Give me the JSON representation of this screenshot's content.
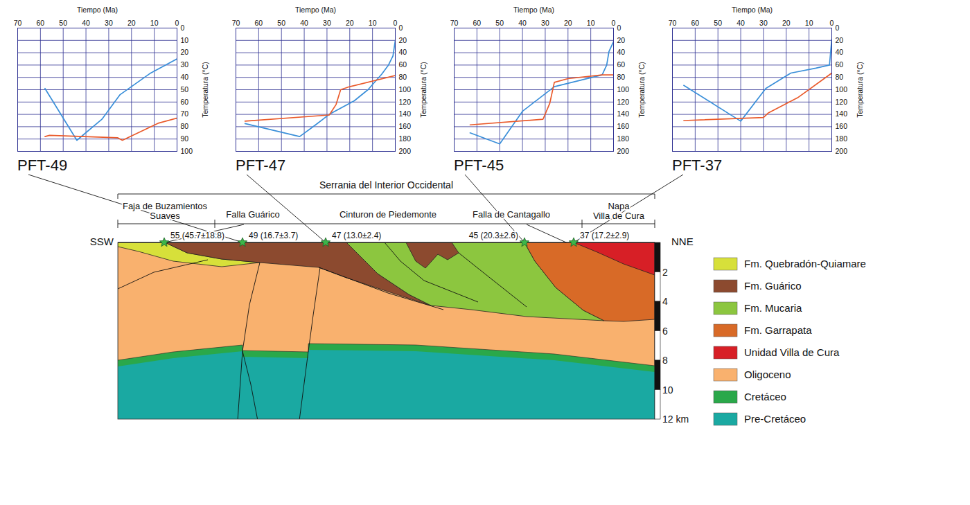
{
  "chart_data": [
    {
      "type": "line",
      "title": "PFT-49",
      "x_label": "Tiempo (Ma)",
      "y_label": "Temperatura (°C)",
      "xlim": [
        70,
        0
      ],
      "xticks": [
        70,
        60,
        50,
        40,
        30,
        20,
        10,
        0
      ],
      "ylim": [
        100,
        0
      ],
      "yticks": [
        0,
        10,
        20,
        30,
        40,
        50,
        60,
        70,
        80,
        90,
        100
      ],
      "grid": true,
      "series": [
        {
          "color": "#3a8fd9",
          "x": [
            58,
            44,
            33,
            25,
            12,
            0
          ],
          "values": [
            49,
            91,
            74,
            54,
            37,
            25
          ]
        },
        {
          "color": "#ea5a2b",
          "x": [
            58,
            56,
            26,
            24,
            8,
            0
          ],
          "values": [
            88,
            87,
            89,
            91,
            77,
            73
          ]
        }
      ]
    },
    {
      "type": "line",
      "title": "PFT-47",
      "x_label": "Tiempo (Ma)",
      "y_label": "Temperatura (°C)",
      "xlim": [
        70,
        0
      ],
      "xticks": [
        70,
        60,
        50,
        40,
        30,
        20,
        10,
        0
      ],
      "ylim": [
        200,
        0
      ],
      "yticks": [
        0,
        20,
        40,
        60,
        80,
        100,
        120,
        140,
        160,
        180,
        200
      ],
      "grid": true,
      "series": [
        {
          "color": "#3a8fd9",
          "x": [
            66,
            42,
            35,
            29,
            18,
            12,
            6,
            3,
            1,
            0
          ],
          "values": [
            155,
            176,
            157,
            140,
            118,
            100,
            75,
            60,
            45,
            20
          ]
        },
        {
          "color": "#ea5a2b",
          "x": [
            66,
            29,
            26,
            24,
            20,
            0
          ],
          "values": [
            151,
            141,
            124,
            100,
            95,
            77
          ]
        }
      ]
    },
    {
      "type": "line",
      "title": "PFT-45",
      "x_label": "Tiempo (Ma)",
      "y_label": "Temperatura (°C)",
      "xlim": [
        70,
        0
      ],
      "xticks": [
        70,
        60,
        50,
        40,
        30,
        20,
        10,
        0
      ],
      "ylim": [
        200,
        0
      ],
      "yticks": [
        0,
        20,
        40,
        60,
        80,
        100,
        120,
        140,
        160,
        180,
        200
      ],
      "grid": true,
      "series": [
        {
          "color": "#3a8fd9",
          "x": [
            63,
            50,
            40,
            26,
            5,
            3,
            2,
            0
          ],
          "values": [
            170,
            188,
            135,
            95,
            76,
            60,
            38,
            22
          ]
        },
        {
          "color": "#ea5a2b",
          "x": [
            63,
            31,
            28,
            26,
            20,
            5,
            0
          ],
          "values": [
            157,
            148,
            122,
            88,
            82,
            76,
            76
          ]
        }
      ]
    },
    {
      "type": "line",
      "title": "PFT-37",
      "x_label": "Tiempo (Ma)",
      "y_label": "Temperatura (°C)",
      "xlim": [
        70,
        0
      ],
      "xticks": [
        70,
        60,
        50,
        40,
        30,
        20,
        10,
        0
      ],
      "ylim": [
        200,
        0
      ],
      "yticks": [
        0,
        20,
        40,
        60,
        80,
        100,
        120,
        140,
        160,
        180,
        200
      ],
      "grid": true,
      "series": [
        {
          "color": "#3a8fd9",
          "x": [
            65,
            40,
            29,
            18,
            7,
            1,
            0
          ],
          "values": [
            93,
            151,
            98,
            73,
            65,
            60,
            18
          ]
        },
        {
          "color": "#ea5a2b",
          "x": [
            65,
            30,
            28,
            15,
            0
          ],
          "values": [
            150,
            145,
            138,
            113,
            73
          ]
        }
      ]
    }
  ],
  "cross_section": {
    "region": "Serrania del Interior Occidental",
    "zones": [
      "Faja de Buzamientos Suaves",
      "Falla Guárico",
      "Cinturon de Piedemonte",
      "Falla de Cantagallo",
      "Napa Villa de Cura"
    ],
    "directions": [
      "SSW",
      "NNE"
    ],
    "samples": [
      "55 (45.7±18.8)",
      "49 (16.7±3.7)",
      "47 (13.0±2.4)",
      "45 (20.3±2.6)",
      "37 (17.2±2.9)"
    ],
    "depth_lim": [
      0,
      12
    ],
    "depth_ticks": [
      2,
      4,
      6,
      8,
      10,
      {
        "value": 12,
        "label": "12 km"
      }
    ],
    "legend": [
      {
        "name": "Fm. Quebradón-Quiamare",
        "color": "#d7e03a"
      },
      {
        "name": "Fm. Guárico",
        "color": "#8c4a2f"
      },
      {
        "name": "Fm. Mucaria",
        "color": "#8cc63f"
      },
      {
        "name": "Fm. Garrapata",
        "color": "#d86a27"
      },
      {
        "name": "Unidad Villa de Cura",
        "color": "#d71f26"
      },
      {
        "name": "Oligoceno",
        "color": "#f9b16e"
      },
      {
        "name": "Cretáceo",
        "color": "#2aa84a"
      },
      {
        "name": "Pre-Cretáceo",
        "color": "#1aa9a2"
      }
    ]
  }
}
